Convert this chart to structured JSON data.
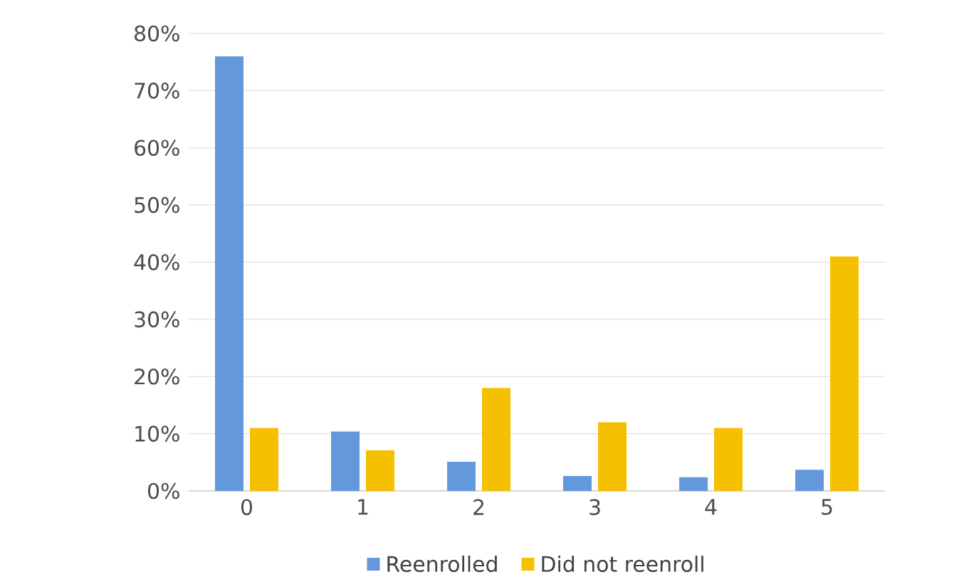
{
  "chart_data": {
    "type": "bar",
    "categories": [
      "0",
      "1",
      "2",
      "3",
      "4",
      "5"
    ],
    "series": [
      {
        "name": "Reenrolled",
        "color": "#6399db",
        "values": [
          76,
          10.4,
          5.1,
          2.6,
          2.4,
          3.7
        ]
      },
      {
        "name": "Did not reenroll",
        "color": "#f5c000",
        "values": [
          11,
          7.1,
          18,
          12,
          11,
          41
        ]
      }
    ],
    "ylim": [
      0,
      80
    ],
    "yticks": [
      {
        "value": 0,
        "label": "0%"
      },
      {
        "value": 10,
        "label": "10%"
      },
      {
        "value": 20,
        "label": "20%"
      },
      {
        "value": 30,
        "label": "30%"
      },
      {
        "value": 40,
        "label": "40%"
      },
      {
        "value": 50,
        "label": "50%"
      },
      {
        "value": 60,
        "label": "60%"
      },
      {
        "value": 70,
        "label": "70%"
      },
      {
        "value": 80,
        "label": "80%"
      }
    ],
    "grid": "y",
    "legend": "bottom"
  }
}
